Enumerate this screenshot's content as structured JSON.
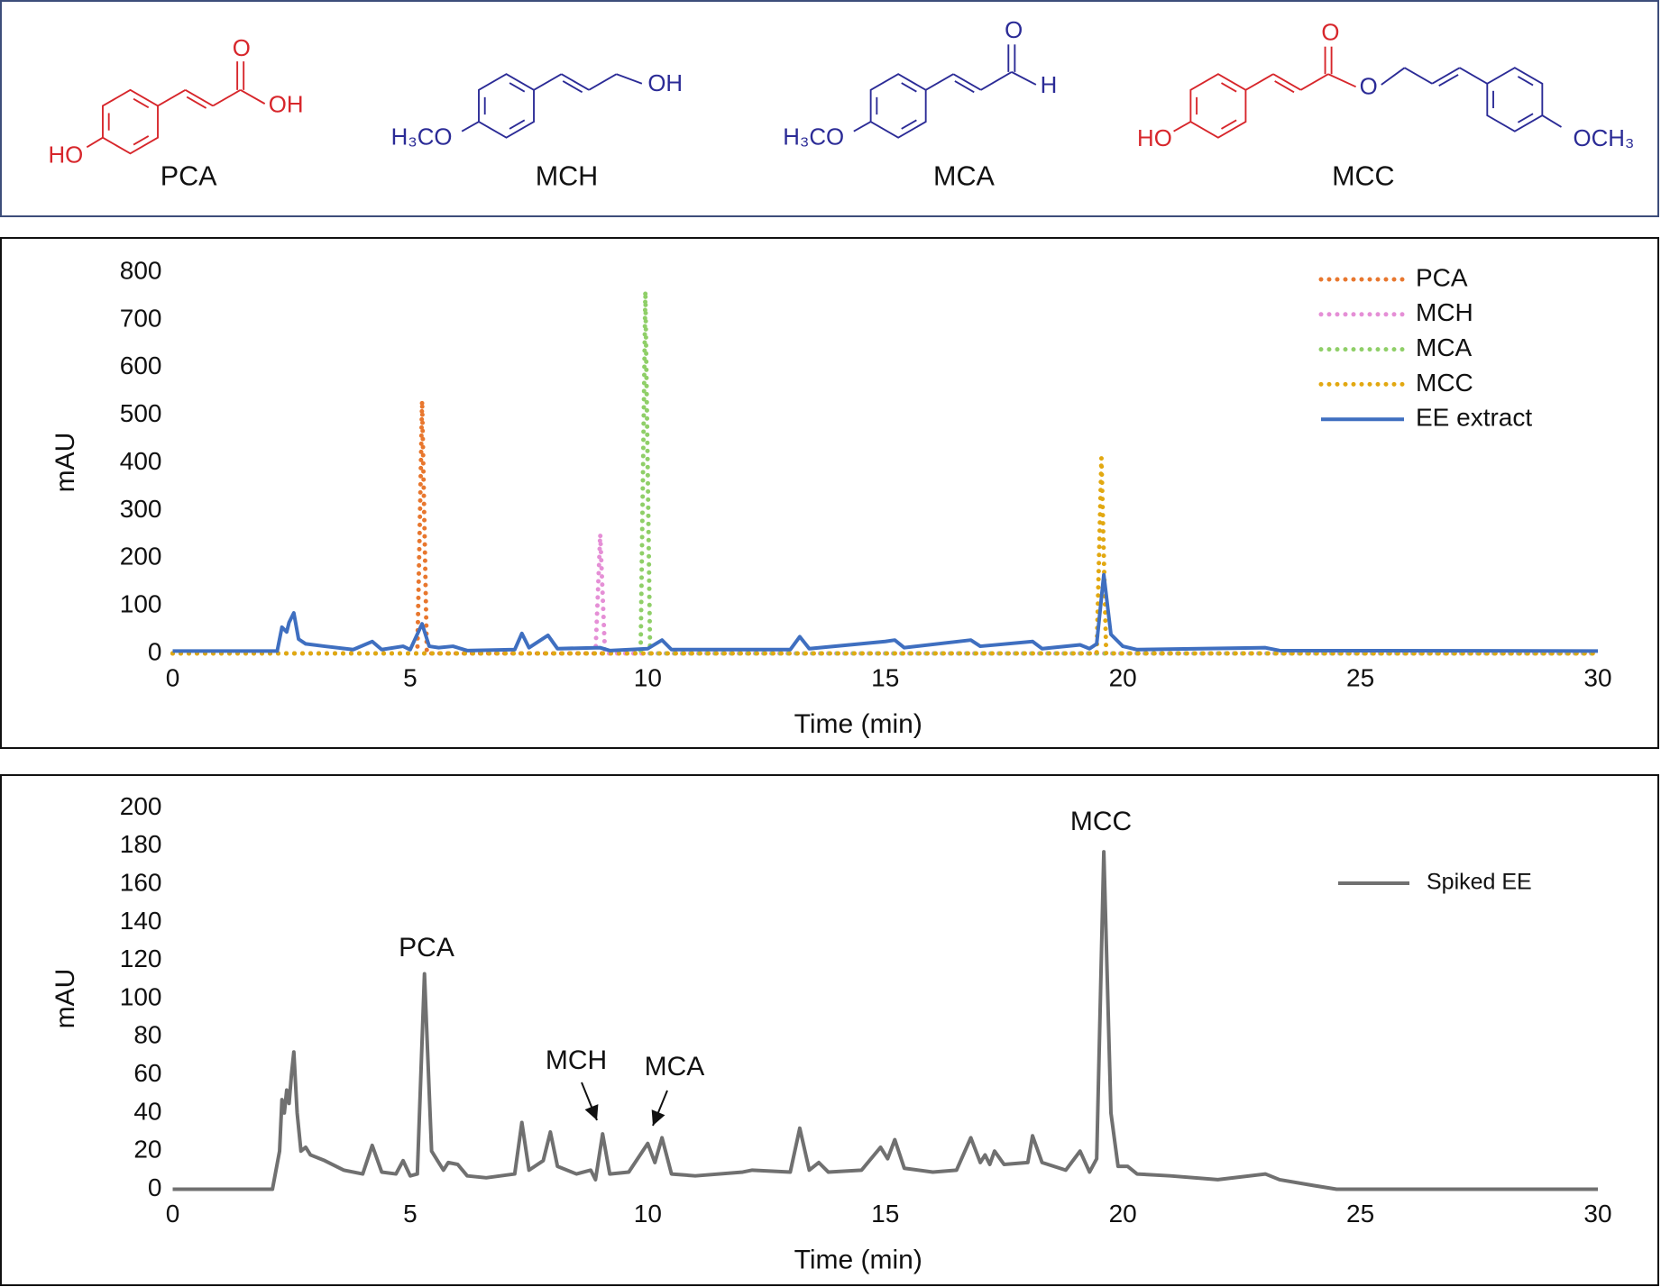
{
  "structures": [
    {
      "name": "PCA",
      "atoms": [
        "O",
        "OH",
        "HO"
      ]
    },
    {
      "name": "MCH",
      "atoms": [
        "OH",
        "H₃CO"
      ]
    },
    {
      "name": "MCA",
      "atoms": [
        "O",
        "H",
        "H₃CO"
      ]
    },
    {
      "name": "MCC",
      "atoms": [
        "O",
        "O",
        "HO",
        "OCH₃"
      ]
    }
  ],
  "chart_data": [
    {
      "type": "line",
      "xlabel": "Time (min)",
      "ylabel": "mAU",
      "xlim": [
        0,
        30
      ],
      "xticks": [
        0,
        5,
        10,
        15,
        20,
        25,
        30
      ],
      "ylim": [
        0,
        800
      ],
      "yticks": [
        0,
        100,
        200,
        300,
        400,
        500,
        600,
        700,
        800
      ],
      "grid": false,
      "legend": "top-right",
      "series": [
        {
          "name": "PCA",
          "color": "#e8772e",
          "line_style": "dotted",
          "x": [
            0,
            5.15,
            5.25,
            5.35,
            30
          ],
          "values": [
            0,
            0,
            530,
            0,
            0
          ]
        },
        {
          "name": "MCH",
          "color": "#e58fd6",
          "line_style": "dotted",
          "x": [
            0,
            8.9,
            9.0,
            9.1,
            30
          ],
          "values": [
            0,
            0,
            250,
            0,
            0
          ]
        },
        {
          "name": "MCA",
          "color": "#8fcf68",
          "line_style": "dotted",
          "x": [
            0,
            9.85,
            9.95,
            10.05,
            30
          ],
          "values": [
            0,
            0,
            760,
            0,
            0
          ]
        },
        {
          "name": "MCC",
          "color": "#e2a811",
          "line_style": "dotted",
          "x": [
            0,
            19.45,
            19.55,
            19.65,
            30
          ],
          "values": [
            0,
            0,
            410,
            0,
            0
          ]
        },
        {
          "name": "EE extract",
          "color": "#3f6fc0",
          "line_style": "solid",
          "x": [
            0,
            2.2,
            2.3,
            2.4,
            2.45,
            2.55,
            2.65,
            2.8,
            3.2,
            3.8,
            4.2,
            4.4,
            4.85,
            5.0,
            5.25,
            5.4,
            5.6,
            5.9,
            6.2,
            7.2,
            7.35,
            7.5,
            7.9,
            8.1,
            9.0,
            9.2,
            10.0,
            10.3,
            10.5,
            12,
            13.0,
            13.2,
            13.4,
            15.0,
            15.2,
            15.4,
            16.8,
            17.0,
            18.1,
            18.3,
            19.1,
            19.3,
            19.45,
            19.6,
            19.75,
            20.0,
            20.3,
            23,
            23.3,
            30
          ],
          "values": [
            5,
            5,
            55,
            45,
            65,
            85,
            30,
            20,
            15,
            8,
            25,
            8,
            15,
            8,
            62,
            15,
            12,
            15,
            6,
            8,
            42,
            12,
            38,
            10,
            12,
            6,
            10,
            28,
            8,
            8,
            8,
            35,
            10,
            25,
            28,
            12,
            28,
            15,
            25,
            10,
            18,
            10,
            20,
            165,
            40,
            15,
            8,
            12,
            6,
            5
          ]
        }
      ]
    },
    {
      "type": "line",
      "xlabel": "Time (min)",
      "ylabel": "mAU",
      "xlim": [
        0,
        30
      ],
      "xticks": [
        0,
        5,
        10,
        15,
        20,
        25,
        30
      ],
      "ylim": [
        0,
        200
      ],
      "yticks": [
        0,
        20,
        40,
        60,
        80,
        100,
        120,
        140,
        160,
        180,
        200
      ],
      "grid": false,
      "legend": "top-right",
      "annotations": [
        "PCA",
        "MCH",
        "MCA",
        "MCC"
      ],
      "series": [
        {
          "name": "Spiked EE",
          "color": "#707070",
          "line_style": "solid",
          "x": [
            0,
            2.1,
            2.25,
            2.3,
            2.35,
            2.4,
            2.45,
            2.5,
            2.55,
            2.62,
            2.7,
            2.8,
            2.9,
            3.2,
            3.6,
            4.0,
            4.2,
            4.4,
            4.7,
            4.85,
            5.0,
            5.15,
            5.3,
            5.45,
            5.6,
            5.7,
            5.8,
            6.0,
            6.2,
            6.6,
            7.2,
            7.35,
            7.5,
            7.8,
            7.95,
            8.1,
            8.5,
            8.8,
            8.9,
            9.05,
            9.2,
            9.6,
            10.0,
            10.15,
            10.3,
            10.5,
            11,
            12,
            12.2,
            13,
            13.2,
            13.4,
            13.6,
            13.8,
            14.5,
            14.9,
            15.05,
            15.2,
            15.4,
            16,
            16.5,
            16.8,
            17.0,
            17.1,
            17.2,
            17.3,
            17.5,
            18,
            18.1,
            18.3,
            18.8,
            19.1,
            19.3,
            19.45,
            19.6,
            19.75,
            19.9,
            20.1,
            20.3,
            21,
            22,
            23,
            23.3,
            24,
            24.5,
            30
          ],
          "values": [
            0,
            0,
            20,
            47,
            40,
            52,
            45,
            60,
            72,
            40,
            20,
            22,
            18,
            15,
            10,
            8,
            23,
            9,
            8,
            15,
            7,
            8,
            113,
            20,
            14,
            10,
            14,
            13,
            7,
            6,
            8,
            35,
            10,
            15,
            30,
            12,
            8,
            10,
            5,
            29,
            8,
            9,
            24,
            14,
            27,
            8,
            7,
            9,
            10,
            9,
            32,
            10,
            14,
            9,
            10,
            22,
            16,
            26,
            11,
            9,
            10,
            27,
            14,
            18,
            13,
            20,
            13,
            14,
            28,
            14,
            10,
            20,
            9,
            16,
            177,
            40,
            12,
            12,
            8,
            7,
            5,
            8,
            5,
            2,
            0,
            0
          ]
        }
      ]
    }
  ]
}
